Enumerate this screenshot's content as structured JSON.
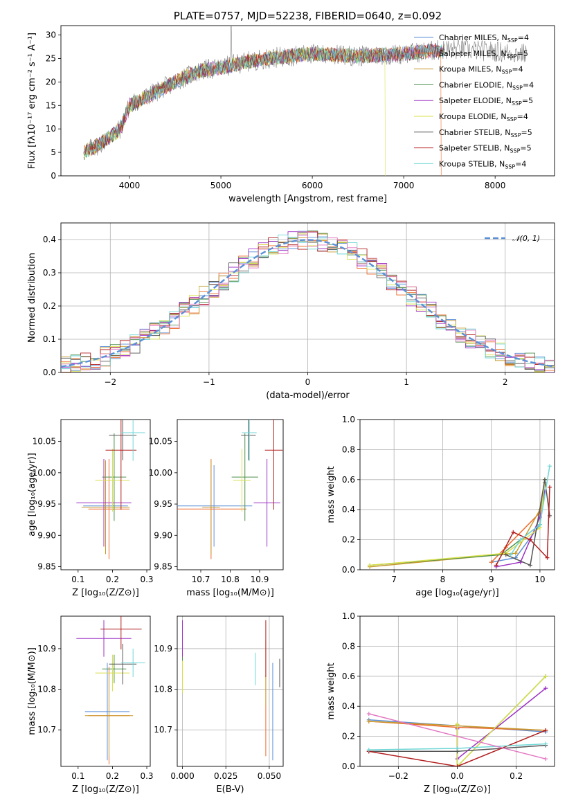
{
  "figure_title": "PLATE=0757, MJD=52238, FIBERID=0640, z=0.092",
  "colors": {
    "chabrier_miles": "#5b8fd6",
    "salpeter_miles": "#ee6a2a",
    "kroupa_miles": "#c89a2e",
    "chabrier_elodie": "#4d8f4d",
    "salpeter_elodie": "#9b30c4",
    "kroupa_elodie": "#d9e04a",
    "chabrier_stelib": "#555555",
    "salpeter_stelib": "#b21e1e",
    "kroupa_stelib": "#6fd6d6",
    "normal": "#5b8fd6"
  },
  "chart_data": [
    {
      "id": "spectrum",
      "type": "line",
      "title": "PLATE=0757, MJD=52238, FIBERID=0640, z=0.092",
      "xlabel": "wavelength [Angstrom, rest frame]",
      "ylabel": "Flux [fλ10⁻¹⁷ erg cm⁻² s⁻¹ A⁻¹]",
      "xlim": [
        3250,
        8650
      ],
      "ylim": [
        0,
        32
      ],
      "xticks": [
        "4000",
        "5000",
        "6000",
        "7000",
        "8000"
      ],
      "yticks": [
        "0",
        "5",
        "10",
        "15",
        "20",
        "25",
        "30"
      ],
      "legend_position": "upper-right",
      "series_names": [
        "Chabrier MILES, N",
        "Salpeter MILES, N",
        "Kroupa MILES, N",
        "Chabrier ELODIE, N",
        "Salpeter ELODIE, N",
        "Kroupa ELODIE, N",
        "Chabrier STELIB, N",
        "Salpeter STELIB, N",
        "Kroupa STELIB, N"
      ],
      "nssp": [
        "SSP",
        "SSP",
        "SSP",
        "SSP",
        "SSP",
        "SSP",
        "SSP",
        "SSP",
        "SSP"
      ],
      "nssp_values": [
        "=4",
        "=5",
        "=4",
        "=4",
        "=5",
        "=4",
        "=5",
        "=5",
        "=4"
      ],
      "data_trend": [
        [
          3500,
          5
        ],
        [
          3700,
          7
        ],
        [
          3900,
          10
        ],
        [
          4000,
          15
        ],
        [
          4200,
          17
        ],
        [
          4400,
          19
        ],
        [
          4600,
          21
        ],
        [
          4800,
          22.5
        ],
        [
          5000,
          23
        ],
        [
          5200,
          24
        ],
        [
          5500,
          25
        ],
        [
          6000,
          26
        ],
        [
          6500,
          25.5
        ],
        [
          7000,
          26
        ],
        [
          7500,
          27
        ],
        [
          8000,
          26.5
        ],
        [
          8300,
          26
        ]
      ]
    },
    {
      "id": "residuals",
      "type": "histogram",
      "xlabel": "(data-model)/error",
      "ylabel": "Normed distribution",
      "xlim": [
        -2.5,
        2.5
      ],
      "ylim": [
        0,
        0.45
      ],
      "xticks": [
        "−2",
        "−1",
        "0",
        "1",
        "2"
      ],
      "yticks": [
        "0.0",
        "0.1",
        "0.2",
        "0.3",
        "0.4"
      ],
      "legend": "𝒩(0, 1)",
      "legend_position": "upper-right",
      "grid": true
    },
    {
      "id": "age_z",
      "type": "errorbar",
      "xlabel": "Z [log₁₀(Z/Z⊙)]",
      "ylabel": "age  [log₁₀(age/yr)]",
      "xlim": [
        0.05,
        0.31
      ],
      "ylim": [
        9.845,
        10.085
      ],
      "xticks": [
        "0.1",
        "0.2",
        "0.3"
      ],
      "yticks": [
        "9.85",
        "9.90",
        "9.95",
        "10.00",
        "10.05"
      ],
      "points": [
        {
          "x": 0.18,
          "y": 9.947,
          "xerr": 0.065,
          "yerr": 0.065
        },
        {
          "x": 0.19,
          "y": 9.942,
          "xerr": 0.06,
          "yerr": 0.08
        },
        {
          "x": 0.18,
          "y": 9.945,
          "xerr": 0.07,
          "yerr": 0.075
        },
        {
          "x": 0.205,
          "y": 9.993,
          "xerr": 0.035,
          "yerr": 0.07
        },
        {
          "x": 0.175,
          "y": 9.952,
          "xerr": 0.08,
          "yerr": 0.07
        },
        {
          "x": 0.2,
          "y": 9.988,
          "xerr": 0.05,
          "yerr": 0.05
        },
        {
          "x": 0.23,
          "y": 10.06,
          "xerr": 0.04,
          "yerr": 0.04
        },
        {
          "x": 0.225,
          "y": 10.036,
          "xerr": 0.045,
          "yerr": 0.095
        },
        {
          "x": 0.26,
          "y": 10.064,
          "xerr": 0.035,
          "yerr": 0.045
        }
      ]
    },
    {
      "id": "age_mass",
      "type": "errorbar",
      "xlabel": "mass [log₁₀(M/M⊙)]",
      "ylabel": "",
      "xlim": [
        10.62,
        10.98
      ],
      "ylim": [
        9.845,
        10.085
      ],
      "xticks": [
        "10.7",
        "10.8",
        "10.9"
      ],
      "yticks": [
        "9.85",
        "9.90",
        "9.95",
        "10.00",
        "10.05"
      ],
      "points": [
        {
          "x": 10.745,
          "y": 9.947,
          "xerr": 0.13,
          "yerr": 0.065
        },
        {
          "x": 10.735,
          "y": 9.942,
          "xerr": 0.12,
          "yerr": 0.08
        },
        {
          "x": 10.735,
          "y": 9.945,
          "xerr": 0.03,
          "yerr": 0.075
        },
        {
          "x": 10.85,
          "y": 9.993,
          "xerr": 0.045,
          "yerr": 0.07
        },
        {
          "x": 10.925,
          "y": 9.952,
          "xerr": 0.045,
          "yerr": 0.07
        },
        {
          "x": 10.84,
          "y": 9.988,
          "xerr": 0.03,
          "yerr": 0.05
        },
        {
          "x": 10.862,
          "y": 10.06,
          "xerr": 0.025,
          "yerr": 0.04
        },
        {
          "x": 10.948,
          "y": 10.036,
          "xerr": 0.03,
          "yerr": 0.095
        },
        {
          "x": 10.865,
          "y": 10.064,
          "xerr": 0.025,
          "yerr": 0.045
        }
      ]
    },
    {
      "id": "weight_age",
      "type": "line",
      "xlabel": "age  [log₁₀(age/yr)]",
      "ylabel": "mass weight",
      "xlim": [
        6.3,
        10.3
      ],
      "ylim": [
        0,
        1
      ],
      "xticks": [
        "7",
        "8",
        "9",
        "10"
      ],
      "yticks": [
        "0.0",
        "0.2",
        "0.4",
        "0.6",
        "0.8",
        "1.0"
      ],
      "grid": true,
      "series": [
        {
          "key": "chabrier_miles",
          "x": [
            9.0,
            9.5,
            10.0,
            10.1
          ],
          "y": [
            0.05,
            0.08,
            0.3,
            0.58
          ]
        },
        {
          "key": "salpeter_miles",
          "x": [
            9.0,
            9.3,
            10.0,
            10.1
          ],
          "y": [
            0.05,
            0.15,
            0.38,
            0.6
          ]
        },
        {
          "key": "kroupa_miles",
          "x": [
            6.5,
            9.5,
            10.0,
            10.1
          ],
          "y": [
            0.02,
            0.11,
            0.4,
            0.58
          ]
        },
        {
          "key": "chabrier_elodie",
          "x": [
            6.5,
            9.2,
            10.0,
            10.1
          ],
          "y": [
            0.03,
            0.1,
            0.3,
            0.6
          ]
        },
        {
          "key": "salpeter_elodie",
          "x": [
            9.1,
            9.6,
            10.0,
            10.1
          ],
          "y": [
            0.02,
            0.05,
            0.35,
            0.52
          ]
        },
        {
          "key": "kroupa_elodie",
          "x": [
            6.5,
            9.3,
            10.0,
            10.1
          ],
          "y": [
            0.03,
            0.11,
            0.28,
            0.6
          ]
        },
        {
          "key": "chabrier_stelib",
          "x": [
            9.3,
            9.8,
            10.1,
            10.2
          ],
          "y": [
            0.1,
            0.03,
            0.6,
            0.36
          ]
        },
        {
          "key": "salpeter_stelib",
          "x": [
            9.1,
            9.45,
            9.8,
            10.15,
            10.2
          ],
          "y": [
            0.03,
            0.25,
            0.2,
            0.08,
            0.55
          ]
        },
        {
          "key": "kroupa_stelib",
          "x": [
            9.4,
            9.6,
            10.0,
            10.2
          ],
          "y": [
            0.1,
            0.2,
            0.3,
            0.69
          ]
        }
      ]
    },
    {
      "id": "mass_z",
      "type": "errorbar",
      "xlabel": "Z [log₁₀(Z/Z⊙)]",
      "ylabel": "mass [log₁₀(M/M⊙)]",
      "xlim": [
        0.05,
        0.31
      ],
      "ylim": [
        10.61,
        10.98
      ],
      "xticks": [
        "0.1",
        "0.2",
        "0.3"
      ],
      "yticks": [
        "10.7",
        "10.8",
        "10.9"
      ],
      "points": [
        {
          "x": 0.185,
          "y": 10.745,
          "xerr": 0.065,
          "yerr": 0.12
        },
        {
          "x": 0.19,
          "y": 10.735,
          "xerr": 0.06,
          "yerr": 0.12
        },
        {
          "x": 0.19,
          "y": 10.735,
          "xerr": 0.07,
          "yerr": 0.1
        },
        {
          "x": 0.205,
          "y": 10.85,
          "xerr": 0.035,
          "yerr": 0.035
        },
        {
          "x": 0.175,
          "y": 10.925,
          "xerr": 0.08,
          "yerr": 0.045
        },
        {
          "x": 0.2,
          "y": 10.84,
          "xerr": 0.05,
          "yerr": 0.045
        },
        {
          "x": 0.23,
          "y": 10.862,
          "xerr": 0.04,
          "yerr": 0.05
        },
        {
          "x": 0.225,
          "y": 10.948,
          "xerr": 0.06,
          "yerr": 0.05
        },
        {
          "x": 0.26,
          "y": 10.865,
          "xerr": 0.035,
          "yerr": 0.035
        }
      ]
    },
    {
      "id": "mass_ebv",
      "type": "errorbar",
      "xlabel": "E(B-V)",
      "ylabel": "",
      "xlim": [
        -0.003,
        0.058
      ],
      "ylim": [
        10.61,
        10.98
      ],
      "xticks": [
        "0.000",
        "0.025",
        "0.050"
      ],
      "yticks": [
        "10.7",
        "10.8",
        "10.9"
      ],
      "points": [
        {
          "x": 0.052,
          "y": 10.745,
          "xerr": 0,
          "yerr": 0.12
        },
        {
          "x": 0.048,
          "y": 10.735,
          "xerr": 0,
          "yerr": 0.1
        },
        {
          "x": 0.048,
          "y": 10.84,
          "xerr": 0,
          "yerr": 0.08
        },
        {
          "x": 0.0,
          "y": 10.84,
          "xerr": 0,
          "yerr": 0.05
        },
        {
          "x": 0.0,
          "y": 10.925,
          "xerr": 0,
          "yerr": 0.045
        },
        {
          "x": 0.0,
          "y": 10.83,
          "xerr": 0,
          "yerr": 0.04
        },
        {
          "x": 0.056,
          "y": 10.84,
          "xerr": 0,
          "yerr": 0.035
        },
        {
          "x": 0.048,
          "y": 10.9,
          "xerr": 0,
          "yerr": 0.07
        },
        {
          "x": 0.042,
          "y": 10.85,
          "xerr": 0,
          "yerr": 0.04
        }
      ]
    },
    {
      "id": "weight_z",
      "type": "line",
      "xlabel": "Z [log₁₀(Z/Z⊙)]",
      "ylabel": "mass weight",
      "xlim": [
        -0.33,
        0.33
      ],
      "ylim": [
        0,
        1
      ],
      "xticks": [
        "−0.2",
        "0.0",
        "0.2"
      ],
      "yticks": [
        "0.0",
        "0.2",
        "0.4",
        "0.6",
        "0.8",
        "1.0"
      ],
      "grid": true,
      "series": [
        {
          "key": "chabrier_miles",
          "x": [
            -0.3,
            0.0,
            0.3
          ],
          "y": [
            0.31,
            0.27,
            0.23
          ]
        },
        {
          "key": "salpeter_miles",
          "x": [
            -0.3,
            0.0,
            0.3
          ],
          "y": [
            0.3,
            0.26,
            0.24
          ]
        },
        {
          "key": "kroupa_miles",
          "x": [
            -0.3,
            0.0,
            0.3
          ],
          "y": [
            0.3,
            0.27,
            0.24
          ]
        },
        {
          "key": "chabrier_elodie",
          "x": [
            0.0,
            0.0,
            0.3
          ],
          "y": [
            0.28,
            0.0,
            0.6
          ]
        },
        {
          "key": "salpeter_elodie",
          "x": [
            0.0,
            0.0,
            0.3
          ],
          "y": [
            0.25,
            0.05,
            0.52
          ]
        },
        {
          "key": "kroupa_elodie",
          "x": [
            0.0,
            0.0,
            0.3
          ],
          "y": [
            0.28,
            0.0,
            0.6
          ]
        },
        {
          "key": "chabrier_stelib",
          "x": [
            -0.3,
            0.0,
            0.3
          ],
          "y": [
            0.1,
            0.1,
            0.14
          ]
        },
        {
          "key": "salpeter_stelib",
          "x": [
            -0.3,
            0.0,
            0.3
          ],
          "y": [
            0.1,
            0.0,
            0.24
          ]
        },
        {
          "key": "kroupa_stelib",
          "x": [
            -0.3,
            0.0,
            0.3
          ],
          "y": [
            0.11,
            0.12,
            0.15
          ]
        },
        {
          "key": "pink",
          "x": [
            -0.3,
            0.3
          ],
          "y": [
            0.35,
            0.05
          ]
        }
      ]
    }
  ]
}
